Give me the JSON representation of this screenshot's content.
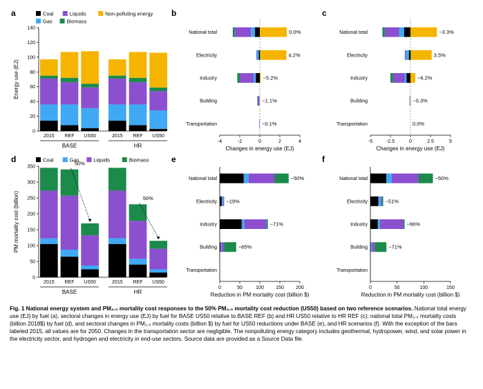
{
  "colors": {
    "coal": "#000000",
    "liquids": "#8b4fcf",
    "gas": "#3fa9f5",
    "biomass": "#1b8a4a",
    "nonpolluting": "#f5b400",
    "axis": "#000000",
    "grid": "#d0d0d0",
    "arrow": "#000000",
    "bg": "#ffffff"
  },
  "fontsize": {
    "axis": 8,
    "tick": 7,
    "legend": 7.5,
    "panel": 12,
    "datalabel": 7.5
  },
  "panel_a": {
    "type": "stacked-bar",
    "ylabel": "Energy use (EJ)",
    "ylim": [
      0,
      140
    ],
    "ytick_step": 20,
    "groups": [
      "BASE",
      "HR"
    ],
    "bars": [
      "2015",
      "REF",
      "US50"
    ],
    "legend": [
      {
        "label": "Coal",
        "color": "coal",
        "marker": "square"
      },
      {
        "label": "Liquids",
        "color": "liquids",
        "marker": "square"
      },
      {
        "label": "Non-polluting energy",
        "color": "nonpolluting",
        "marker": "square"
      },
      {
        "label": "Gas",
        "color": "gas",
        "marker": "square"
      },
      {
        "label": "Biomass",
        "color": "biomass",
        "marker": "square"
      }
    ],
    "stack_order": [
      "coal",
      "gas",
      "liquids",
      "biomass",
      "nonpolluting"
    ],
    "data": {
      "BASE": {
        "2015": {
          "coal": 14,
          "gas": 22,
          "liquids": 35,
          "biomass": 4,
          "nonpolluting": 22
        },
        "REF": {
          "coal": 8,
          "gas": 28,
          "liquids": 30,
          "biomass": 6,
          "nonpolluting": 35
        },
        "US50": {
          "coal": 4,
          "gas": 27,
          "liquids": 28,
          "biomass": 5,
          "nonpolluting": 44
        }
      },
      "HR": {
        "2015": {
          "coal": 14,
          "gas": 22,
          "liquids": 35,
          "biomass": 4,
          "nonpolluting": 22
        },
        "REF": {
          "coal": 8,
          "gas": 28,
          "liquids": 30,
          "biomass": 6,
          "nonpolluting": 35
        },
        "US50": {
          "coal": 3,
          "gas": 25,
          "liquids": 26,
          "biomass": 5,
          "nonpolluting": 47
        }
      }
    }
  },
  "panel_b": {
    "type": "diverging-stacked-bar",
    "xlabel": "Changes in energy use (EJ)",
    "xlim": [
      -4,
      4
    ],
    "xticks": [
      -4,
      -2,
      0,
      2,
      4
    ],
    "categories": [
      "National total",
      "Electricity",
      "Industry",
      "Building",
      "Transportation"
    ],
    "stack_order": [
      "coal",
      "gas",
      "liquids",
      "biomass",
      "nonpolluting"
    ],
    "data": {
      "National total": {
        "coal": -0.5,
        "gas": -0.4,
        "liquids": -1.6,
        "biomass": -0.2,
        "nonpolluting": 2.7,
        "pct": "0.0%"
      },
      "Electricity": {
        "coal": -0.1,
        "gas": -0.2,
        "liquids": -0.05,
        "biomass": 0.05,
        "nonpolluting": 2.6,
        "pct": "4.2%"
      },
      "Industry": {
        "coal": -0.4,
        "gas": -0.2,
        "liquids": -1.4,
        "biomass": -0.25,
        "nonpolluting": 0.1,
        "pct": "−5.2%"
      },
      "Building": {
        "coal": 0,
        "gas": -0.05,
        "liquids": -0.15,
        "biomass": -0.05,
        "nonpolluting": 0.02,
        "pct": "−1.1%"
      },
      "Transportation": {
        "coal": 0,
        "gas": 0,
        "liquids": -0.05,
        "biomass": 0,
        "nonpolluting": 0,
        "pct": "−0.1%"
      }
    }
  },
  "panel_c": {
    "type": "diverging-stacked-bar",
    "xlabel": "Changes in energy use (EJ)",
    "xlim": [
      -5,
      5
    ],
    "xticks": [
      -5,
      -2.5,
      0,
      2.5,
      5
    ],
    "categories": [
      "National total",
      "Electricity",
      "Industry",
      "Building",
      "Transportation"
    ],
    "stack_order": [
      "coal",
      "gas",
      "liquids",
      "biomass",
      "nonpolluting"
    ],
    "data": {
      "National total": {
        "coal": -0.8,
        "gas": -0.6,
        "liquids": -1.8,
        "biomass": -0.3,
        "nonpolluting": 3.3,
        "pct": "−3.3%"
      },
      "Electricity": {
        "coal": -0.2,
        "gas": -0.4,
        "liquids": -0.1,
        "biomass": 0.05,
        "nonpolluting": 2.6,
        "pct": "3.5%"
      },
      "Industry": {
        "coal": -0.5,
        "gas": -0.2,
        "liquids": -1.5,
        "biomass": -0.3,
        "nonpolluting": 0.6,
        "pct": "−6.2%"
      },
      "Building": {
        "coal": 0,
        "gas": -0.03,
        "liquids": -0.05,
        "biomass": -0.03,
        "nonpolluting": 0.02,
        "pct": "−0.3%"
      },
      "Transportation": {
        "coal": 0,
        "gas": 0,
        "liquids": 0,
        "biomass": 0,
        "nonpolluting": 0,
        "pct": "0.0%"
      }
    }
  },
  "panel_d": {
    "type": "stacked-bar",
    "ylabel": "PM mortality cost (billion)",
    "ylim": [
      0,
      350
    ],
    "ytick_step": 50,
    "groups": [
      "BASE",
      "HR"
    ],
    "bars": [
      "2015",
      "REF",
      "US50"
    ],
    "legend": [
      {
        "label": "Coal",
        "color": "coal",
        "marker": "square"
      },
      {
        "label": "Gas",
        "color": "gas",
        "marker": "square"
      },
      {
        "label": "Liquids",
        "color": "liquids",
        "marker": "square"
      },
      {
        "label": "Biomass",
        "color": "biomass",
        "marker": "square"
      }
    ],
    "stack_order": [
      "coal",
      "gas",
      "liquids",
      "biomass"
    ],
    "arrows": [
      {
        "from": "BASE.REF",
        "to": "BASE.US50",
        "label": "50%"
      },
      {
        "from": "HR.REF",
        "to": "HR.US50",
        "label": "50%"
      }
    ],
    "data": {
      "BASE": {
        "2015": {
          "coal": 105,
          "gas": 18,
          "liquids": 150,
          "biomass": 72
        },
        "REF": {
          "coal": 65,
          "gas": 22,
          "liquids": 170,
          "biomass": 83
        },
        "US50": {
          "coal": 25,
          "gas": 12,
          "liquids": 95,
          "biomass": 38
        }
      },
      "HR": {
        "2015": {
          "coal": 105,
          "gas": 18,
          "liquids": 150,
          "biomass": 72
        },
        "REF": {
          "coal": 40,
          "gas": 18,
          "liquids": 120,
          "biomass": 52
        },
        "US50": {
          "coal": 15,
          "gas": 10,
          "liquids": 65,
          "biomass": 25
        }
      }
    }
  },
  "panel_e": {
    "type": "hbar-stacked",
    "xlabel": "Reduction in PM mortality cost (billion $)",
    "xlim": [
      0,
      200
    ],
    "xtick_step": 50,
    "categories": [
      "National total",
      "Electricity",
      "Industry",
      "Building",
      "Transportation"
    ],
    "stack_order": [
      "coal",
      "gas",
      "liquids",
      "biomass"
    ],
    "data": {
      "National total": {
        "coal": 60,
        "gas": 12,
        "liquids": 65,
        "biomass": 35,
        "pct": "−50%"
      },
      "Electricity": {
        "coal": 5,
        "gas": 3,
        "liquids": 2,
        "biomass": 1,
        "pct": "−19%"
      },
      "Industry": {
        "coal": 55,
        "gas": 7,
        "liquids": 55,
        "biomass": 3,
        "pct": "−71%"
      },
      "Building": {
        "coal": 2,
        "gas": 2,
        "liquids": 7,
        "biomass": 30,
        "pct": "−65%"
      },
      "Transportation": {
        "coal": 0,
        "gas": 0,
        "liquids": 0,
        "biomass": 0,
        "pct": ""
      }
    }
  },
  "panel_f": {
    "type": "hbar-stacked",
    "xlabel": "Reduction in PM mortality cost (billion $)",
    "xlim": [
      0,
      150
    ],
    "xtick_step": 50,
    "categories": [
      "National total",
      "Electricity",
      "Industry",
      "Building",
      "Transportation"
    ],
    "stack_order": [
      "coal",
      "gas",
      "liquids",
      "biomass"
    ],
    "data": {
      "National total": {
        "coal": 30,
        "gas": 10,
        "liquids": 50,
        "biomass": 27,
        "pct": "−50%"
      },
      "Electricity": {
        "coal": 15,
        "gas": 5,
        "liquids": 2,
        "biomass": 2,
        "pct": "−51%"
      },
      "Industry": {
        "coal": 14,
        "gas": 4,
        "liquids": 44,
        "biomass": 2,
        "pct": "−66%"
      },
      "Building": {
        "coal": 1,
        "gas": 2,
        "liquids": 5,
        "biomass": 22,
        "pct": "−71%"
      },
      "Transportation": {
        "coal": 0,
        "gas": 0,
        "liquids": 0,
        "biomass": 0,
        "pct": ""
      }
    }
  },
  "caption": {
    "title": "Fig. 1 National energy system and PM₂.₅ mortality cost responses to the 50% PM₂.₅ mortality cost reduction (US50) based on two reference scenarios.",
    "body": " National total energy use (EJ) by fuel (a), sectoral changes in energy use (EJ) by fuel for BASE US50 relative to BASE REF (b) and HR US50 relative to HR REF (c); national total PM₂.₅ mortality costs (billion 2018$) by fuel (d), and sectoral changes in PM₂.₅ mortality costs (billion $) by fuel for US50 reductions under BASE (e), and HR scenarios (f). With the exception of the bars labeled 2015, all values are for 2050. Changes in the transportation sector are negligible. The nonpolluting energy category includes geothermal, hydropower, wind, and solar power in the electricity sector, and hydrogen and electricity in end-use sectors. Source data are provided as a Source Data file."
  }
}
